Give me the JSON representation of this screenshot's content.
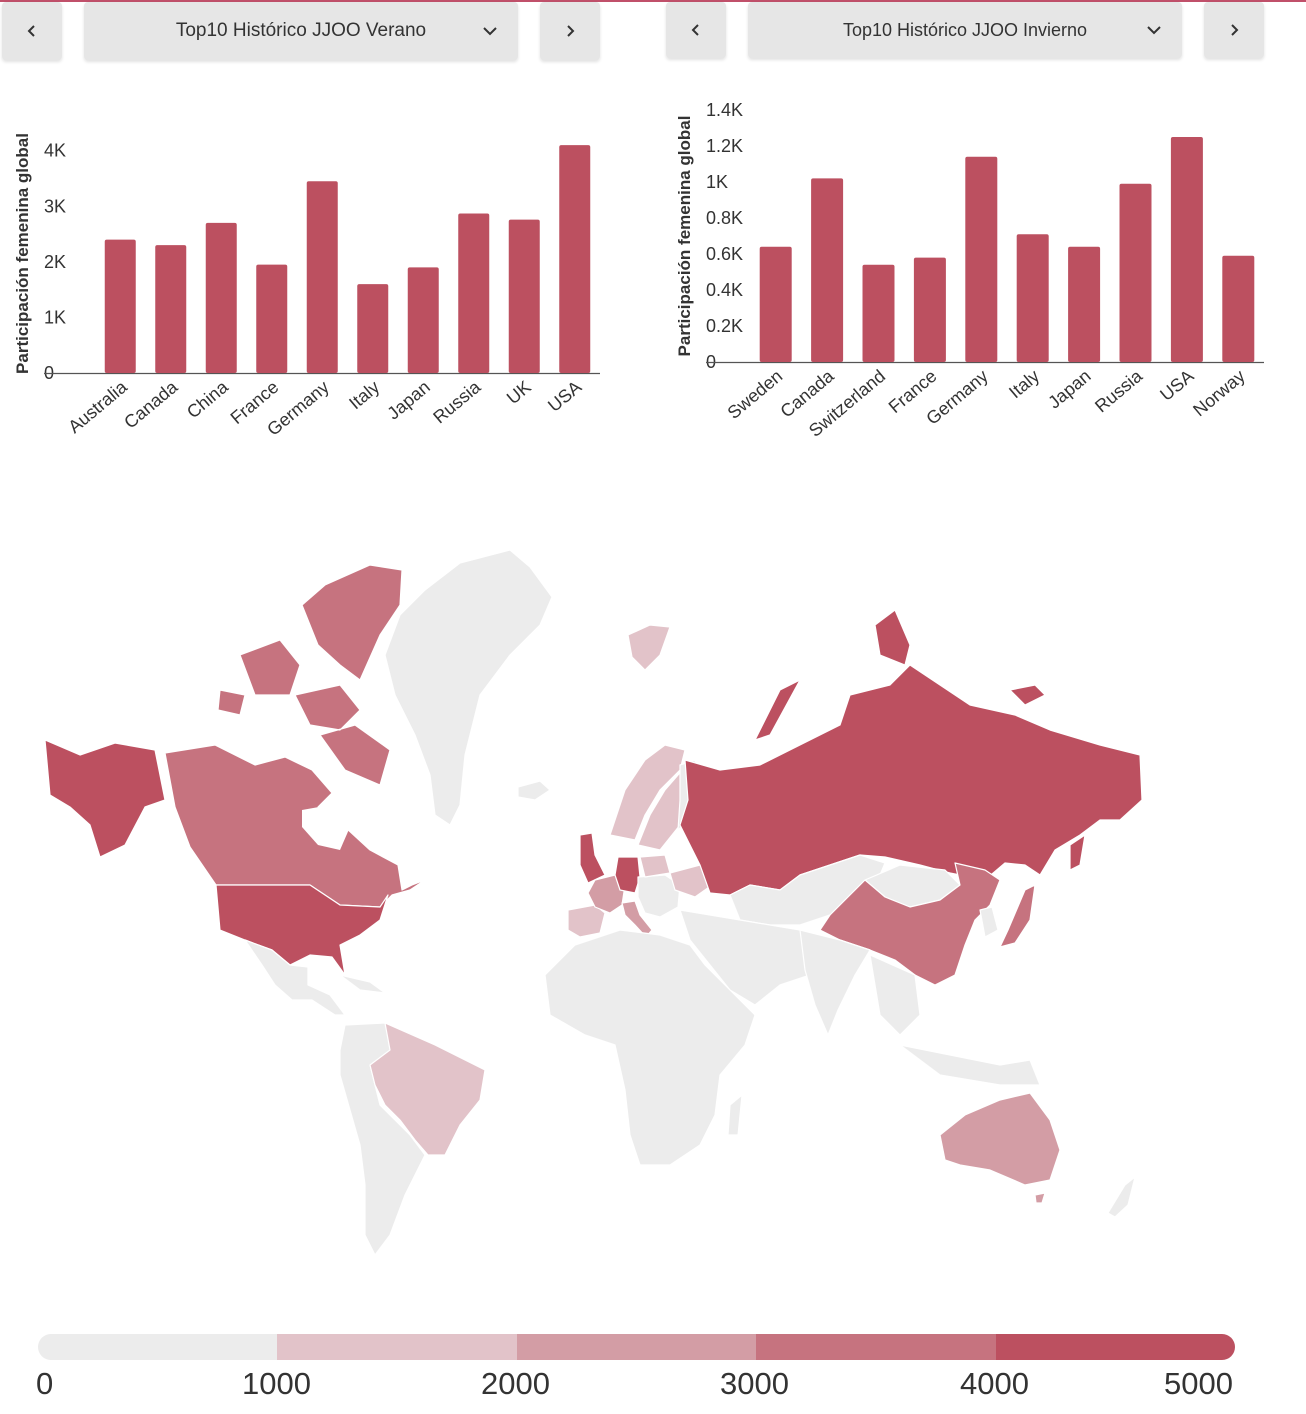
{
  "controls": {
    "left": {
      "prev_icon": "chevron-left-icon",
      "dropdown_label": "Top10 Histórico JJOO Verano",
      "dropdown_icon": "chevron-down-icon",
      "next_icon": "chevron-right-icon"
    },
    "right": {
      "prev_icon": "chevron-left-icon",
      "dropdown_label": "Top10 Histórico JJOO Invierno",
      "dropdown_icon": "chevron-down-icon",
      "next_icon": "chevron-right-icon"
    }
  },
  "colors": {
    "bar": "#bc5060",
    "map_empty": "#ececec",
    "scale": [
      "#ececec",
      "#e2c3c9",
      "#d39da5",
      "#c6737f",
      "#bc5060"
    ]
  },
  "chart_data": [
    {
      "type": "bar",
      "title": "",
      "xlabel": "",
      "ylabel": "Participación femenina global",
      "categories": [
        "Australia",
        "Canada",
        "China",
        "France",
        "Germany",
        "Italy",
        "Japan",
        "Russia",
        "UK",
        "USA"
      ],
      "values": [
        2400,
        2300,
        2700,
        1950,
        3450,
        1600,
        1900,
        2870,
        2760,
        4100
      ],
      "ylim": [
        0,
        4300
      ],
      "yticks": [
        0,
        1000,
        2000,
        3000,
        4000
      ],
      "ytick_labels": [
        "0",
        "1K",
        "2K",
        "3K",
        "4K"
      ],
      "grid": false
    },
    {
      "type": "bar",
      "title": "",
      "xlabel": "",
      "ylabel": "Participación femenina global",
      "categories": [
        "Sweden",
        "Canada",
        "Switzerland",
        "France",
        "Germany",
        "Italy",
        "Japan",
        "Russia",
        "USA",
        "Norway"
      ],
      "values": [
        640,
        1020,
        540,
        580,
        1140,
        710,
        640,
        990,
        1250,
        590
      ],
      "ylim": [
        0,
        1400
      ],
      "yticks": [
        0,
        200,
        400,
        600,
        800,
        1000,
        1200,
        1400
      ],
      "ytick_labels": [
        "0",
        "0.2K",
        "0.4K",
        "0.6K",
        "0.8K",
        "1K",
        "1.2K",
        "1.4K"
      ],
      "grid": false
    },
    {
      "type": "choropleth",
      "legend": {
        "min": 0,
        "max": 5000,
        "bins": [
          0,
          1000,
          2000,
          3000,
          4000,
          5000
        ],
        "labels": [
          "0",
          "1000",
          "2000",
          "3000",
          "4000",
          "5000"
        ]
      },
      "regions": [
        {
          "name": "United States",
          "bin": 4
        },
        {
          "name": "Canada",
          "bin": 3
        },
        {
          "name": "Russia",
          "bin": 4
        },
        {
          "name": "Germany",
          "bin": 4
        },
        {
          "name": "United Kingdom",
          "bin": 4
        },
        {
          "name": "Japan",
          "bin": 3
        },
        {
          "name": "China",
          "bin": 3
        },
        {
          "name": "France",
          "bin": 2
        },
        {
          "name": "Italy",
          "bin": 2
        },
        {
          "name": "Australia",
          "bin": 2
        },
        {
          "name": "Sweden",
          "bin": 1
        },
        {
          "name": "Norway",
          "bin": 1
        },
        {
          "name": "Brazil",
          "bin": 1
        },
        {
          "name": "Spain",
          "bin": 1
        },
        {
          "name": "Poland",
          "bin": 1
        },
        {
          "name": "Ukraine",
          "bin": 1
        },
        {
          "name": "Svalbard",
          "bin": 1
        }
      ]
    }
  ]
}
